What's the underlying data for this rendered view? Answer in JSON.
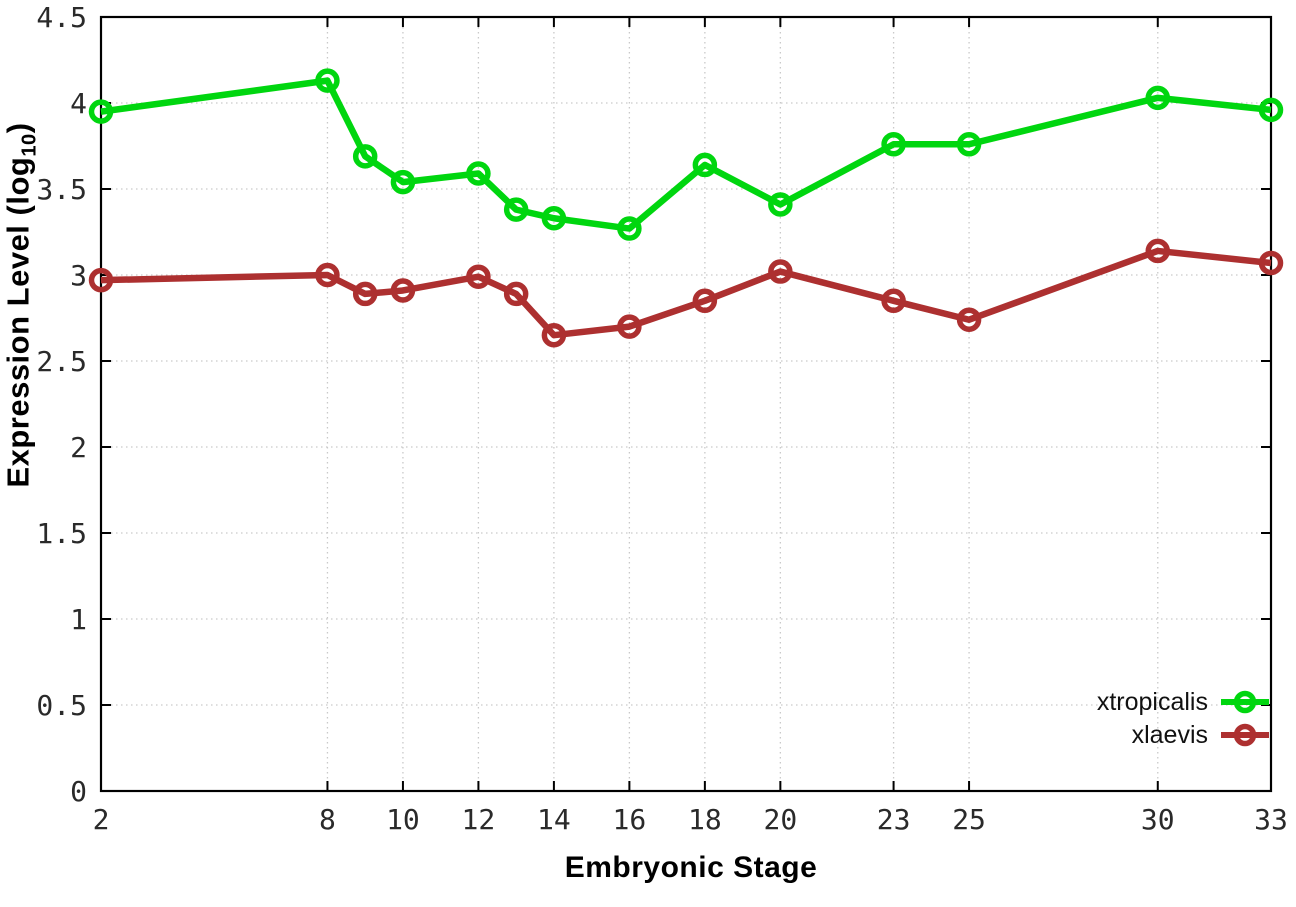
{
  "figure": {
    "background": "#ffffff",
    "border_color": "#000000",
    "grid_color": "#c9c9c9",
    "tick_color": "#000000",
    "tick_label_color": "#2a2a2a"
  },
  "chart_data": {
    "type": "line",
    "title": "",
    "xlabel": "Embryonic Stage",
    "ylabel": "Expression Level (log10)",
    "ylabel_parts": {
      "pre": "Expression Level (log",
      "sub": "10",
      "post": ")"
    },
    "x": [
      2,
      8,
      9,
      10,
      12,
      13,
      14,
      16,
      18,
      20,
      23,
      25,
      30,
      33
    ],
    "series": [
      {
        "name": "xtropicalis",
        "color": "#00d60f",
        "values": [
          3.95,
          4.13,
          3.69,
          3.54,
          3.59,
          3.38,
          3.33,
          3.27,
          3.64,
          3.41,
          3.76,
          3.76,
          4.03,
          3.96
        ]
      },
      {
        "name": "xlaevis",
        "color": "#ad3030",
        "values": [
          2.97,
          3.0,
          2.89,
          2.91,
          2.99,
          2.89,
          2.65,
          2.7,
          2.85,
          3.02,
          2.85,
          2.74,
          3.14,
          3.07
        ]
      }
    ],
    "x_tick_values": [
      2,
      8,
      10,
      12,
      14,
      16,
      18,
      20,
      23,
      25,
      30,
      33
    ],
    "x_tick_labels": [
      "2",
      "8",
      "10",
      "12",
      "14",
      "16",
      "18",
      "20",
      "23",
      "25",
      "30",
      "33"
    ],
    "y_tick_values": [
      0,
      0.5,
      1,
      1.5,
      2,
      2.5,
      3,
      3.5,
      4,
      4.5
    ],
    "y_tick_labels": [
      "0",
      "0.5",
      "1",
      "1.5",
      "2",
      "2.5",
      "3",
      "3.5",
      "4",
      "4.5"
    ],
    "xlim": [
      2,
      33
    ],
    "ylim": [
      0,
      4.5
    ],
    "grid": true,
    "legend_position": "bottom-right-inside"
  }
}
